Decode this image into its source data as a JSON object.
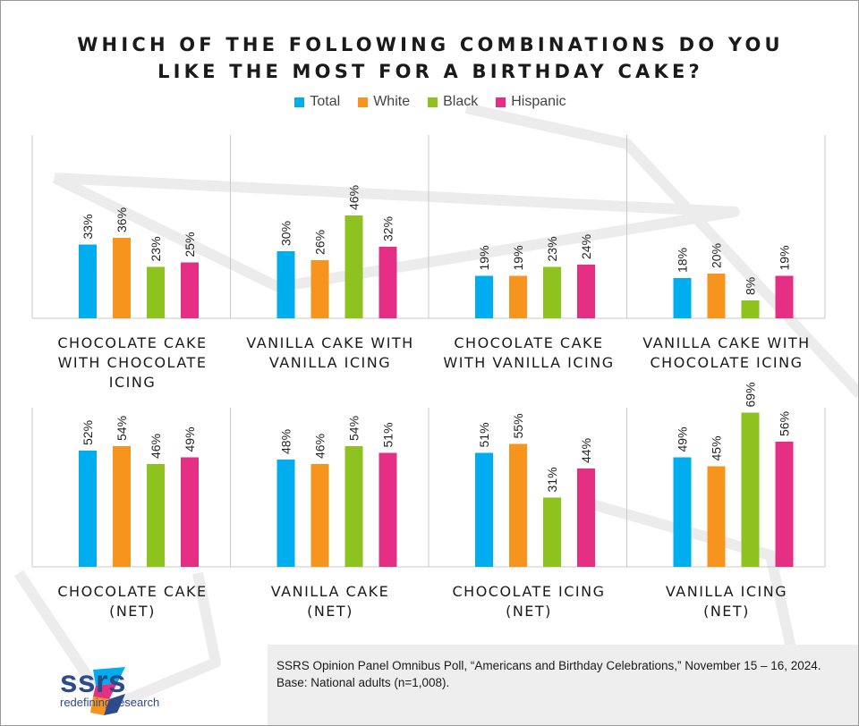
{
  "title_lines": [
    "WHICH OF THE FOLLOWING COMBINATIONS DO YOU",
    "LIKE THE MOST FOR A BIRTHDAY CAKE?"
  ],
  "legend": [
    {
      "name": "Total",
      "color": "#00aeef"
    },
    {
      "name": "White",
      "color": "#f7941d"
    },
    {
      "name": "Black",
      "color": "#8dc21f"
    },
    {
      "name": "Hispanic",
      "color": "#e42f85"
    }
  ],
  "chart_data": {
    "type": "bar",
    "title": "WHICH OF THE FOLLOWING COMBINATIONS DO YOU LIKE THE MOST FOR A BIRTHDAY CAKE?",
    "series_names": [
      "Total",
      "White",
      "Black",
      "Hispanic"
    ],
    "ylim": [
      0,
      100
    ],
    "grid": false,
    "legend_position": "top-center",
    "panels": [
      {
        "label_lines": [
          "CHOCOLATE CAKE",
          "WITH CHOCOLATE",
          "ICING"
        ],
        "values": [
          33,
          36,
          23,
          25
        ],
        "labels": [
          "33%",
          "36%",
          "23%",
          "25%"
        ]
      },
      {
        "label_lines": [
          "VANILLA CAKE WITH",
          "VANILLA ICING"
        ],
        "values": [
          30,
          26,
          46,
          32
        ],
        "labels": [
          "30%",
          "26%",
          "46%",
          "32%"
        ]
      },
      {
        "label_lines": [
          "CHOCOLATE CAKE",
          "WITH VANILLA ICING"
        ],
        "values": [
          19,
          19,
          23,
          24
        ],
        "labels": [
          "19%",
          "19%",
          "23%",
          "24%"
        ]
      },
      {
        "label_lines": [
          "VANILLA CAKE WITH",
          "CHOCOLATE ICING"
        ],
        "values": [
          18,
          20,
          8,
          19
        ],
        "labels": [
          "18%",
          "20%",
          "8%",
          "19%"
        ]
      },
      {
        "label_lines": [
          "CHOCOLATE CAKE",
          "(NET)"
        ],
        "values": [
          52,
          54,
          46,
          49
        ],
        "labels": [
          "52%",
          "54%",
          "46%",
          "49%"
        ]
      },
      {
        "label_lines": [
          "VANILLA CAKE",
          "(NET)"
        ],
        "values": [
          48,
          46,
          54,
          51
        ],
        "labels": [
          "48%",
          "46%",
          "54%",
          "51%"
        ]
      },
      {
        "label_lines": [
          "CHOCOLATE ICING",
          "(NET)"
        ],
        "values": [
          51,
          55,
          31,
          44
        ],
        "labels": [
          "51%",
          "55%",
          "31%",
          "44%"
        ]
      },
      {
        "label_lines": [
          "VANILLA ICING",
          "(NET)"
        ],
        "values": [
          49,
          45,
          69,
          56
        ],
        "labels": [
          "49%",
          "45%",
          "69%",
          "56%"
        ]
      }
    ]
  },
  "source_lines": [
    "SSRS Opinion Panel Omnibus Poll, “Americans and Birthday Celebrations,” November 15 – 16, 2024.",
    "Base: National adults (n=1,008)."
  ],
  "logo": {
    "word": "ssrs",
    "tagline": "redefining research",
    "icon": "ssrs-logo-icon",
    "brand_color": "#2d4a8a"
  }
}
